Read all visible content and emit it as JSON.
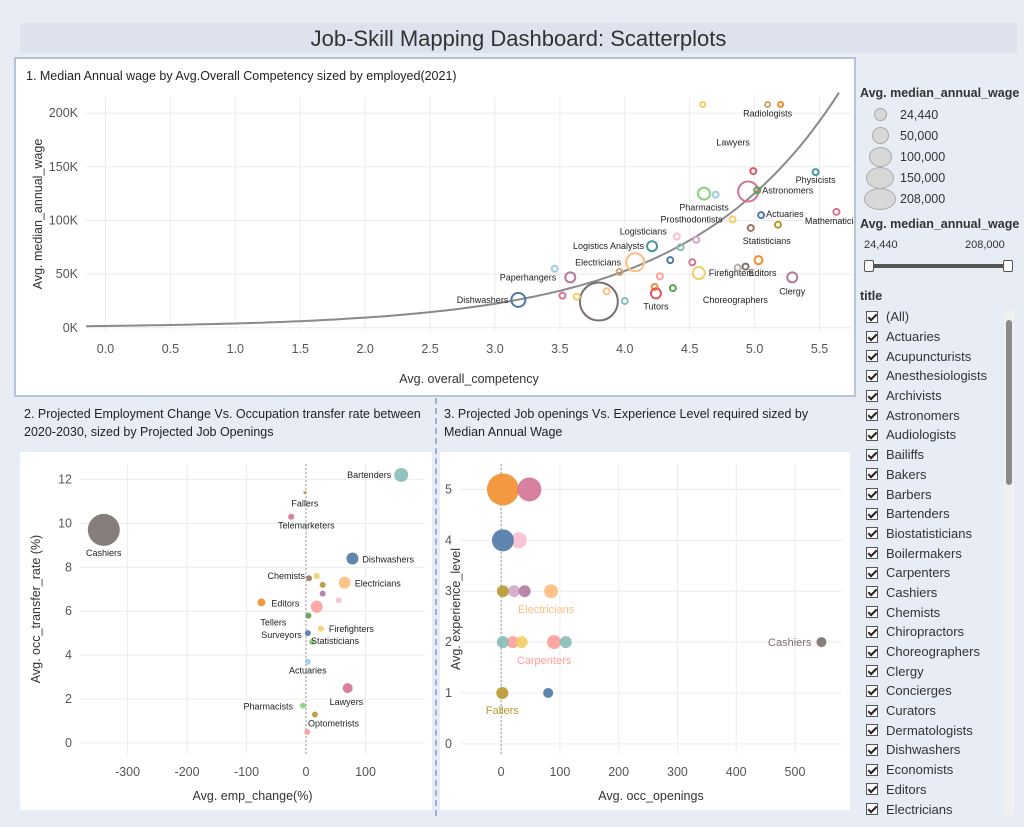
{
  "dashboard_title": "Job-Skill Mapping Dashboard: Scatterplots",
  "legend": {
    "size_title": "Avg. median_annual_wage",
    "sizes": [
      "24,440",
      "50,000",
      "100,000",
      "150,000",
      "208,000"
    ],
    "range_title": "Avg. median_annual_wage",
    "range_min": "24,440",
    "range_max": "208,000",
    "filter_title": "title",
    "filter_items": [
      "(All)",
      "Actuaries",
      "Acupuncturists",
      "Anesthesiologists",
      "Archivists",
      "Astronomers",
      "Audiologists",
      "Bailiffs",
      "Bakers",
      "Barbers",
      "Bartenders",
      "Biostatisticians",
      "Boilermakers",
      "Carpenters",
      "Cashiers",
      "Chemists",
      "Chiropractors",
      "Choreographers",
      "Clergy",
      "Concierges",
      "Curators",
      "Dermatologists",
      "Dishwashers",
      "Economists",
      "Editors",
      "Electricians"
    ]
  },
  "chart_data": [
    {
      "type": "scatter",
      "title": "1. Median Annual wage by Avg.Overall Competency sized by employed(2021)",
      "xlabel": "Avg. overall_competency",
      "ylabel": "Avg. median_annual_wage",
      "xlim": [
        -0.15,
        5.75
      ],
      "ylim": [
        -3000,
        215000
      ],
      "xticks": [
        "0.0",
        "0.5",
        "1.0",
        "1.5",
        "2.0",
        "2.5",
        "3.0",
        "3.5",
        "4.0",
        "4.5",
        "5.0",
        "5.5"
      ],
      "yticks": [
        {
          "v": 0,
          "t": "0K"
        },
        {
          "v": 50000,
          "t": "50K"
        },
        {
          "v": 100000,
          "t": "100K"
        },
        {
          "v": 150000,
          "t": "150K"
        },
        {
          "v": 200000,
          "t": "200K"
        }
      ],
      "trend_line": "exponential",
      "points": [
        {
          "name": "Radiologists",
          "x": 5.1,
          "y": 208000,
          "color": "#d4a373"
        },
        {
          "name": "",
          "x": 5.2,
          "y": 208000,
          "color": "#f28e2b"
        },
        {
          "name": "",
          "x": 4.6,
          "y": 208000,
          "color": "#f1ce63"
        },
        {
          "name": "Lawyers",
          "x": 4.95,
          "y": 127000,
          "color": "#d37295"
        },
        {
          "name": "",
          "x": 4.99,
          "y": 146000,
          "color": "#e15759"
        },
        {
          "name": "Physicists",
          "x": 5.47,
          "y": 145000,
          "color": "#499894"
        },
        {
          "name": "Astronomers",
          "x": 5.02,
          "y": 128000,
          "color": "#59a14f"
        },
        {
          "name": "Pharmacists",
          "x": 4.61,
          "y": 125000,
          "color": "#8cd17d"
        },
        {
          "name": "",
          "x": 4.7,
          "y": 124000,
          "color": "#a0cbe8"
        },
        {
          "name": "Actuaries",
          "x": 5.05,
          "y": 105000,
          "color": "#4e79a7"
        },
        {
          "name": "Mathematicians",
          "x": 5.63,
          "y": 108000,
          "color": "#d37295"
        },
        {
          "name": "Prosthodontists",
          "x": 4.83,
          "y": 101000,
          "color": "#f1ce63"
        },
        {
          "name": "Statisticians",
          "x": 4.97,
          "y": 93000,
          "color": "#9d7660"
        },
        {
          "name": "",
          "x": 5.18,
          "y": 96000,
          "color": "#b6992d"
        },
        {
          "name": "Logisticians",
          "x": 4.4,
          "y": 85000,
          "color": "#fabfd2"
        },
        {
          "name": "Logistics Analysts",
          "x": 4.21,
          "y": 76000,
          "color": "#499894"
        },
        {
          "name": "",
          "x": 4.43,
          "y": 75000,
          "color": "#86bcb6"
        },
        {
          "name": "",
          "x": 4.55,
          "y": 82000,
          "color": "#d4a6c8"
        },
        {
          "name": "Electricians",
          "x": 4.08,
          "y": 61000,
          "color": "#ffbe7d"
        },
        {
          "name": "",
          "x": 4.35,
          "y": 63000,
          "color": "#4e79a7"
        },
        {
          "name": "",
          "x": 4.52,
          "y": 61000,
          "color": "#d37295"
        },
        {
          "name": "Firefighters",
          "x": 4.57,
          "y": 51000,
          "color": "#f1ce63"
        },
        {
          "name": "Editors",
          "x": 5.03,
          "y": 63000,
          "color": "#f28e2b"
        },
        {
          "name": "",
          "x": 4.87,
          "y": 56000,
          "color": "#bab0ac"
        },
        {
          "name": "",
          "x": 4.93,
          "y": 57000,
          "color": "#79706e"
        },
        {
          "name": "",
          "x": 4.27,
          "y": 48000,
          "color": "#ff9d9a"
        },
        {
          "name": "Paperhangers",
          "x": 3.58,
          "y": 47000,
          "color": "#b07aa1"
        },
        {
          "name": "",
          "x": 3.96,
          "y": 52000,
          "color": "#d4a373"
        },
        {
          "name": "",
          "x": 4.23,
          "y": 38000,
          "color": "#f28e2b"
        },
        {
          "name": "Choreographers",
          "x": 4.37,
          "y": 37000,
          "color": "#59a14f"
        },
        {
          "name": "Clergy",
          "x": 5.29,
          "y": 47000,
          "color": "#b07aa1"
        },
        {
          "name": "Dishwashers",
          "x": 3.18,
          "y": 26000,
          "color": "#4e79a7"
        },
        {
          "name": "",
          "x": 3.8,
          "y": 24440,
          "color": "#79706e"
        },
        {
          "name": "",
          "x": 3.63,
          "y": 29000,
          "color": "#f1ce63"
        },
        {
          "name": "",
          "x": 3.86,
          "y": 34000,
          "color": "#ffbe7d"
        },
        {
          "name": "",
          "x": 4.0,
          "y": 25000,
          "color": "#86bcb6"
        },
        {
          "name": "Tutors",
          "x": 4.24,
          "y": 32000,
          "color": "#e15759"
        },
        {
          "name": "",
          "x": 3.52,
          "y": 30000,
          "color": "#d37295"
        },
        {
          "name": "",
          "x": 3.46,
          "y": 55000,
          "color": "#a0cbe8"
        }
      ]
    },
    {
      "type": "scatter",
      "title": "2. Projected Employment Change Vs. Occupation transfer rate between 2020-2030, sized by Projected Job Openings",
      "xlabel": "Avg. emp_change(%)",
      "ylabel": "Avg. occ_transfer_rate (%)",
      "xlim": [
        -380,
        200
      ],
      "ylim": [
        -0.5,
        12.7
      ],
      "xticks": [
        -300,
        -200,
        -100,
        0,
        100
      ],
      "yticks": [
        0,
        2,
        4,
        6,
        8,
        10,
        12
      ],
      "points": [
        {
          "name": "Cashiers",
          "x": -340,
          "y": 9.7,
          "color": "#79706e"
        },
        {
          "name": "Bartenders",
          "x": 160,
          "y": 12.2,
          "color": "#86bcb6"
        },
        {
          "name": "Fallers",
          "x": -2,
          "y": 11.4,
          "color": "#b6992d"
        },
        {
          "name": "Telemarketers",
          "x": -25,
          "y": 10.3,
          "color": "#d37295"
        },
        {
          "name": "Dishwashers",
          "x": 78,
          "y": 8.4,
          "color": "#4e79a7"
        },
        {
          "name": "Chemists",
          "x": 5,
          "y": 7.5,
          "color": "#9d7660"
        },
        {
          "name": "Electricians",
          "x": 65,
          "y": 7.3,
          "color": "#ffbe7d"
        },
        {
          "name": "",
          "x": 18,
          "y": 7.6,
          "color": "#f1ce63"
        },
        {
          "name": "",
          "x": 28,
          "y": 7.2,
          "color": "#b6992d"
        },
        {
          "name": "",
          "x": 28,
          "y": 6.8,
          "color": "#b07aa1"
        },
        {
          "name": "",
          "x": 55,
          "y": 6.5,
          "color": "#fabfd2"
        },
        {
          "name": "Editors",
          "x": -75,
          "y": 6.4,
          "color": "#f28e2b"
        },
        {
          "name": "",
          "x": 18,
          "y": 6.2,
          "color": "#ff9d9a"
        },
        {
          "name": "Tellers",
          "x": 4,
          "y": 5.8,
          "color": "#59a14f"
        },
        {
          "name": "Firefighters",
          "x": 25,
          "y": 5.2,
          "color": "#f1ce63"
        },
        {
          "name": "Surveyors",
          "x": 3,
          "y": 5.0,
          "color": "#4e79a7"
        },
        {
          "name": "Statisticians",
          "x": 10,
          "y": 4.6,
          "color": "#8cd17d"
        },
        {
          "name": "Actuaries",
          "x": 3,
          "y": 3.7,
          "color": "#a0cbe8"
        },
        {
          "name": "Lawyers",
          "x": 70,
          "y": 2.5,
          "color": "#d37295"
        },
        {
          "name": "Pharmacists",
          "x": -5,
          "y": 1.7,
          "color": "#8cd17d"
        },
        {
          "name": "Optometrists",
          "x": 15,
          "y": 1.3,
          "color": "#b6992d"
        },
        {
          "name": "",
          "x": 2,
          "y": 0.5,
          "color": "#ff9d9a"
        }
      ]
    },
    {
      "type": "scatter",
      "title": "3. Projected Job openings Vs. Experience Level required sized by Median Annual Wage",
      "xlabel": "Avg. occ_openings",
      "ylabel": "Avg. experience_level",
      "xlim": [
        -70,
        580
      ],
      "ylim": [
        -0.2,
        5.5
      ],
      "xticks": [
        0,
        100,
        200,
        300,
        400,
        500
      ],
      "yticks": [
        0,
        1,
        2,
        3,
        4,
        5
      ],
      "points": [
        {
          "name": "",
          "x": 3,
          "y": 5,
          "color": "#f28e2b"
        },
        {
          "name": "",
          "x": 48,
          "y": 5,
          "color": "#d37295"
        },
        {
          "name": "",
          "x": 30,
          "y": 4,
          "color": "#fabfd2"
        },
        {
          "name": "",
          "x": 3,
          "y": 4,
          "color": "#4e79a7"
        },
        {
          "name": "",
          "x": 22,
          "y": 3,
          "color": "#d4a6c8"
        },
        {
          "name": "",
          "x": 40,
          "y": 3,
          "color": "#b07aa1"
        },
        {
          "name": "Electricians",
          "x": 85,
          "y": 3,
          "color": "#ffbe7d"
        },
        {
          "name": "",
          "x": 3,
          "y": 3,
          "color": "#b6992d"
        },
        {
          "name": "",
          "x": 20,
          "y": 2,
          "color": "#ff9d9a"
        },
        {
          "name": "",
          "x": 35,
          "y": 2,
          "color": "#f1ce63"
        },
        {
          "name": "Carpenters",
          "x": 90,
          "y": 2,
          "color": "#ff9d9a"
        },
        {
          "name": "",
          "x": 110,
          "y": 2,
          "color": "#86bcb6"
        },
        {
          "name": "",
          "x": 3,
          "y": 2,
          "color": "#86bcb6"
        },
        {
          "name": "Cashiers",
          "x": 545,
          "y": 2,
          "color": "#79706e"
        },
        {
          "name": "Fallers",
          "x": 2,
          "y": 1,
          "color": "#b6992d"
        },
        {
          "name": "",
          "x": 80,
          "y": 1,
          "color": "#4e79a7"
        }
      ]
    }
  ]
}
